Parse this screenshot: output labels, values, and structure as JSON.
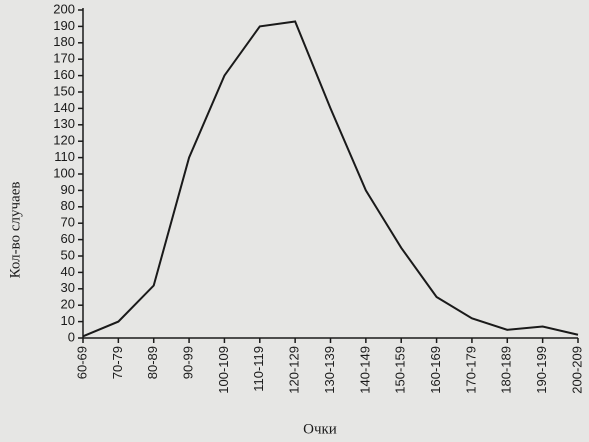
{
  "chart_data": {
    "type": "line",
    "ylabel": "Кол-во случаев",
    "xlabel": "Очки",
    "categories": [
      "60-69",
      "70-79",
      "80-89",
      "90-99",
      "100-109",
      "110-119",
      "120-129",
      "130-139",
      "140-149",
      "150-159",
      "160-169",
      "170-179",
      "180-189",
      "190-199",
      "200-209"
    ],
    "values": [
      1,
      10,
      32,
      110,
      160,
      190,
      193,
      140,
      90,
      55,
      25,
      12,
      5,
      7,
      2
    ],
    "color": "#1a1a1a",
    "ylim": [
      0,
      200
    ],
    "yticks": [
      0,
      10,
      20,
      30,
      40,
      50,
      60,
      70,
      80,
      90,
      100,
      110,
      120,
      130,
      140,
      150,
      160,
      170,
      180,
      190,
      200
    ],
    "grid": false
  }
}
